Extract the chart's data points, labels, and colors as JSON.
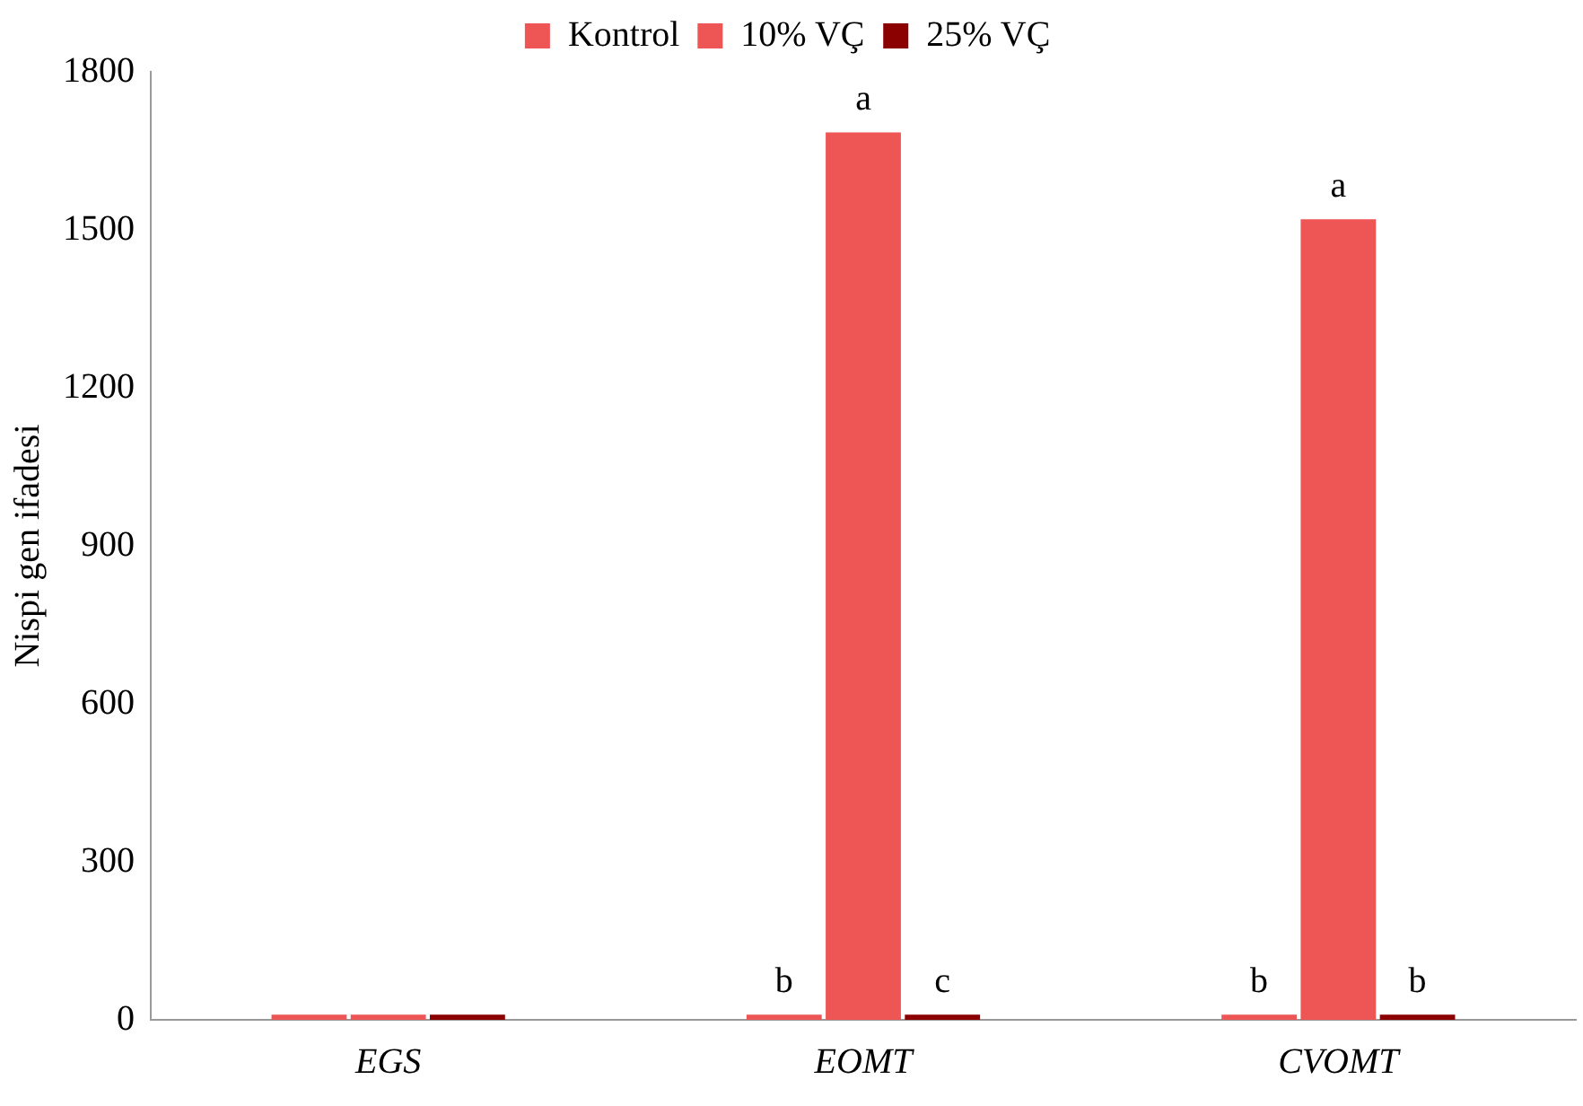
{
  "chart_data": {
    "type": "bar",
    "ylabel": "Nispi gen ifadesi",
    "categories": [
      "EGS",
      "EOMT",
      "CVOMT"
    ],
    "series": [
      {
        "name": "Kontrol",
        "color": "#ee5555",
        "values": [
          10,
          10,
          10
        ],
        "value_labels": [
          null,
          "b",
          "b"
        ]
      },
      {
        "name": "10% VÇ",
        "color": "#ee5555",
        "values": [
          10,
          1685,
          1520
        ],
        "value_labels": [
          null,
          "a",
          "a"
        ]
      },
      {
        "name": "25% VÇ",
        "color": "#8b0000",
        "values": [
          10,
          10,
          10
        ],
        "value_labels": [
          null,
          "c",
          "b"
        ]
      }
    ],
    "ylim": [
      0,
      1800
    ],
    "yticks": [
      0,
      300,
      600,
      900,
      1200,
      1500,
      1800
    ],
    "grid": false,
    "legend": "top"
  }
}
